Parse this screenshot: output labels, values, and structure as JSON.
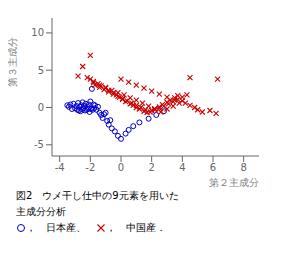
{
  "chart_data": {
    "type": "scatter",
    "xlabel": "第２主成分",
    "ylabel": "第３主成分",
    "caption": [
      "図2　ウメ干し仕中の9元素を用いた",
      "主成分分析"
    ],
    "xlim": [
      -4.5,
      9.0
    ],
    "ylim": [
      -6.5,
      12.0
    ],
    "xticks": [
      -4,
      -2,
      0,
      2,
      4,
      6,
      8
    ],
    "yticks": [
      -5,
      0,
      5,
      10
    ],
    "grid": false,
    "series": [
      {
        "name": "，　日本産、　",
        "color": "#0000cc",
        "marker": "circle",
        "x": [
          -3.5,
          -3.4,
          -3.3,
          -3.2,
          -3.1,
          -3.0,
          -2.9,
          -2.85,
          -2.8,
          -2.75,
          -2.7,
          -2.65,
          -2.6,
          -2.55,
          -2.5,
          -2.45,
          -2.4,
          -2.35,
          -2.3,
          -2.25,
          -2.2,
          -2.15,
          -2.1,
          -2.05,
          -2.0,
          -1.95,
          -1.9,
          -1.85,
          -1.8,
          -1.75,
          -1.7,
          -1.6,
          -1.5,
          -1.4,
          -1.3,
          -1.2,
          -1.1,
          -1.0,
          -0.9,
          -0.8,
          -0.7,
          -0.6,
          -0.4,
          -0.2,
          0.0,
          0.3,
          0.5,
          0.8,
          1.2,
          1.8,
          2.3,
          2.8
        ],
        "y": [
          0.3,
          0.1,
          0.4,
          -0.2,
          0.5,
          -0.1,
          0.2,
          -0.3,
          0.6,
          -0.4,
          0.1,
          -0.5,
          0.3,
          -0.2,
          0.7,
          -0.1,
          0.2,
          -0.4,
          0.5,
          -0.3,
          0.1,
          -0.2,
          0.4,
          -0.6,
          0.8,
          -0.2,
          2.5,
          -0.3,
          0.4,
          -0.1,
          0.3,
          -0.3,
          0.1,
          -0.7,
          -1.0,
          -1.4,
          -0.9,
          -0.7,
          -1.8,
          -2.3,
          -1.7,
          -2.8,
          -3.2,
          -3.8,
          -4.2,
          -3.5,
          -3.0,
          -2.5,
          -2.0,
          -1.5,
          -1.0,
          -0.5
        ]
      },
      {
        "name": "，　中国産．",
        "color": "#cc0000",
        "marker": "x",
        "x": [
          -2.8,
          -2.5,
          -2.2,
          -2.0,
          -1.8,
          -1.5,
          -1.3,
          -1.0,
          -0.8,
          -0.5,
          -0.3,
          -0.1,
          0.1,
          0.3,
          0.6,
          0.8,
          1.0,
          1.2,
          1.5,
          1.7,
          2.0,
          2.2,
          2.5,
          2.7,
          3.0,
          3.2,
          3.5,
          3.7,
          4.0,
          4.2,
          4.5,
          4.8,
          5.0,
          5.3,
          5.8,
          6.2,
          -2.0,
          -1.7,
          -1.4,
          -1.1,
          -0.8,
          -0.5,
          -0.2,
          0.1,
          0.4,
          0.7,
          1.0,
          1.3,
          1.6,
          1.9,
          2.2,
          2.5,
          2.8,
          3.1,
          3.4,
          3.7,
          4.0,
          4.3,
          -1.8,
          -1.4,
          -1.0,
          -0.6,
          -0.2,
          0.2,
          0.6,
          1.0,
          1.4,
          1.8,
          2.2,
          2.6,
          3.0,
          3.4,
          3.8,
          0.0,
          0.5,
          1.0,
          1.5,
          2.0,
          2.5,
          3.0,
          3.5,
          4.5,
          6.3
        ],
        "y": [
          4.2,
          5.5,
          4.0,
          3.8,
          3.5,
          3.2,
          2.9,
          2.6,
          2.3,
          2.0,
          1.7,
          1.4,
          1.1,
          0.8,
          0.5,
          0.3,
          0.0,
          -0.2,
          -0.5,
          -0.7,
          -0.4,
          -0.2,
          0.1,
          0.4,
          0.7,
          1.0,
          1.3,
          1.6,
          0.9,
          0.6,
          0.3,
          0.0,
          -0.3,
          -0.6,
          -0.4,
          -0.8,
          7.0,
          3.0,
          2.7,
          2.4,
          2.1,
          1.8,
          1.5,
          1.2,
          0.9,
          0.6,
          0.3,
          0.0,
          -0.3,
          -0.6,
          -0.3,
          -0.1,
          0.2,
          0.5,
          0.8,
          1.1,
          1.4,
          1.7,
          3.3,
          3.0,
          2.7,
          2.3,
          2.0,
          1.7,
          1.3,
          1.0,
          0.6,
          0.2,
          -0.2,
          -0.6,
          -0.2,
          0.2,
          0.6,
          3.8,
          3.4,
          3.0,
          2.6,
          2.2,
          1.8,
          1.4,
          1.0,
          4.0,
          3.8
        ]
      }
    ]
  }
}
